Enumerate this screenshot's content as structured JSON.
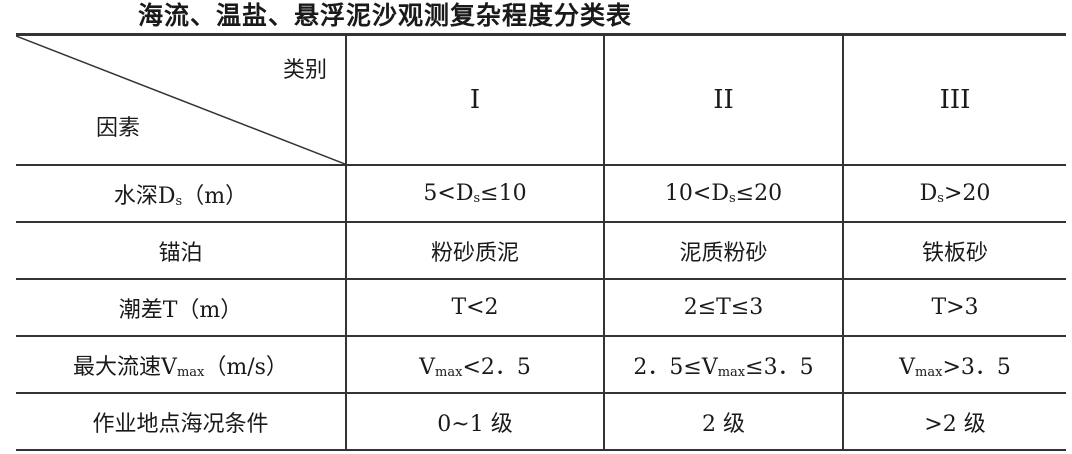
{
  "title": "海流、温盐、悬浮泥沙观测复杂程度分类表",
  "header": {
    "category_label": "类别",
    "factor_label": "因素",
    "columns": [
      "I",
      "II",
      "III"
    ]
  },
  "rows": [
    {
      "factor": [
        {
          "t": "水深D"
        },
        {
          "sub": "s"
        },
        {
          "t": "（m）"
        }
      ],
      "cells": [
        [
          {
            "t": "5<D"
          },
          {
            "sub": "s"
          },
          {
            "t": "≤10"
          }
        ],
        [
          {
            "t": "10<D"
          },
          {
            "sub": "s"
          },
          {
            "t": "≤20"
          }
        ],
        [
          {
            "t": "D"
          },
          {
            "sub": "s"
          },
          {
            "t": ">20"
          }
        ]
      ]
    },
    {
      "factor": [
        {
          "t": "锚泊"
        }
      ],
      "cells": [
        [
          {
            "t": "粉砂质泥"
          }
        ],
        [
          {
            "t": "泥质粉砂"
          }
        ],
        [
          {
            "t": "铁板砂"
          }
        ]
      ]
    },
    {
      "factor": [
        {
          "t": "潮差T（m）"
        }
      ],
      "cells": [
        [
          {
            "t": "T<2"
          }
        ],
        [
          {
            "t": "2≤T≤3"
          }
        ],
        [
          {
            "t": "T>3"
          }
        ]
      ]
    },
    {
      "factor": [
        {
          "t": "最大流速V"
        },
        {
          "sub": "max"
        },
        {
          "t": "（m/s）"
        }
      ],
      "cells": [
        [
          {
            "t": "V"
          },
          {
            "sub": "max"
          },
          {
            "t": "<2．5"
          }
        ],
        [
          {
            "t": "2．5≤V"
          },
          {
            "sub": "max"
          },
          {
            "t": "≤3．5"
          }
        ],
        [
          {
            "t": "V"
          },
          {
            "sub": "max"
          },
          {
            "t": ">3．5"
          }
        ]
      ]
    },
    {
      "factor": [
        {
          "t": "作业地点海况条件"
        }
      ],
      "cells": [
        [
          {
            "t": "0~1 级"
          }
        ],
        [
          {
            "t": "2 级"
          }
        ],
        [
          {
            "t": ">2 级"
          }
        ]
      ]
    }
  ]
}
